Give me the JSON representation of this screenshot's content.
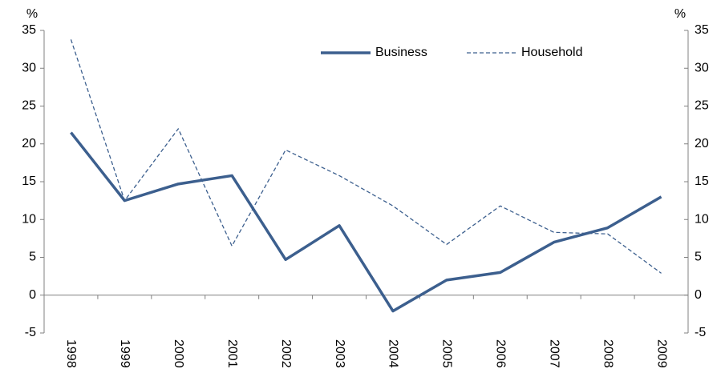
{
  "chart_data": {
    "type": "line",
    "categories": [
      "1998",
      "1999",
      "2000",
      "2001",
      "2002",
      "2003",
      "2004",
      "2005",
      "2006",
      "2007",
      "2008",
      "2009"
    ],
    "series": [
      {
        "name": "Business",
        "color": "#3c5f8e",
        "style": "solid",
        "values": [
          21.5,
          12.5,
          14.7,
          15.8,
          4.7,
          9.2,
          -2.1,
          2.0,
          3.0,
          7.0,
          8.9,
          13.0
        ]
      },
      {
        "name": "Household",
        "color": "#3c5f8e",
        "style": "dashed",
        "values": [
          33.8,
          12.5,
          22.0,
          6.5,
          19.2,
          15.8,
          11.8,
          6.7,
          11.8,
          8.3,
          8.1,
          2.9
        ]
      }
    ],
    "ylabel": "%",
    "y2label": "%",
    "ylim": [
      -5,
      35
    ],
    "yticks": [
      -5,
      0,
      5,
      10,
      15,
      20,
      25,
      30,
      35
    ],
    "y2lim": [
      -5,
      35
    ],
    "y2ticks": [
      -5,
      0,
      5,
      10,
      15,
      20,
      25,
      30,
      35
    ],
    "grid": false,
    "legend": "top"
  }
}
